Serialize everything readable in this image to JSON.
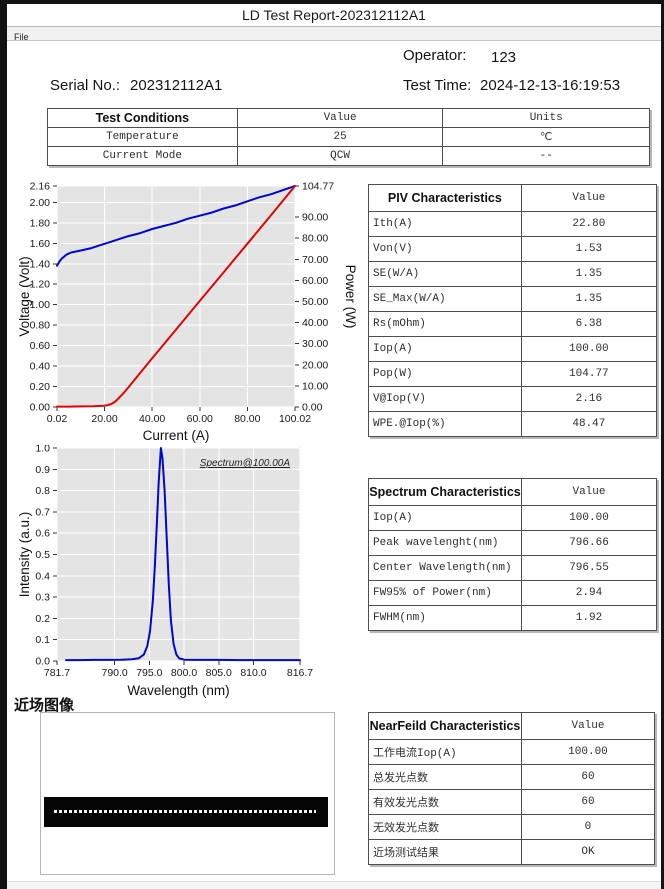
{
  "window": {
    "title": "LD Test Report-202312112A1",
    "menu": {
      "file_label": "File"
    }
  },
  "header": {
    "operator_label": "Operator:",
    "operator_value": "123",
    "serial_label": "Serial No.:",
    "serial_value": "202312112A1",
    "test_time_label": "Test Time:",
    "test_time_value": "2024-12-13-16:19:53"
  },
  "test_conditions": {
    "headers": [
      "Test Conditions",
      "Value",
      "Units"
    ],
    "rows": [
      [
        "Temperature",
        "25",
        "℃"
      ],
      [
        "Current Mode",
        "QCW",
        "--"
      ]
    ]
  },
  "piv_table": {
    "headers": [
      "PIV Characteristics",
      "Value"
    ],
    "rows": [
      [
        "Ith(A)",
        "22.80"
      ],
      [
        "Von(V)",
        "1.53"
      ],
      [
        "SE(W/A)",
        "1.35"
      ],
      [
        "SE_Max(W/A)",
        "1.35"
      ],
      [
        "Rs(mOhm)",
        "6.38"
      ],
      [
        "Iop(A)",
        "100.00"
      ],
      [
        "Pop(W)",
        "104.77"
      ],
      [
        "V@Iop(V)",
        "2.16"
      ],
      [
        "WPE.@Iop(%)",
        "48.47"
      ]
    ]
  },
  "spectrum_table": {
    "headers": [
      "Spectrum Characteristics",
      "Value"
    ],
    "rows": [
      [
        "Iop(A)",
        "100.00"
      ],
      [
        "Peak wavelenght(nm)",
        "796.66"
      ],
      [
        "Center Wavelength(nm)",
        "796.55"
      ],
      [
        "FW95% of Power(nm)",
        "2.94"
      ],
      [
        "FWHM(nm)",
        "1.92"
      ]
    ]
  },
  "nearfield": {
    "section_label": "近场图像",
    "table": {
      "headers": [
        "NearFeild Characteristics",
        "Value"
      ],
      "rows": [
        [
          "工作电流Iop(A)",
          "100.00"
        ],
        [
          "总发光点数",
          "60"
        ],
        [
          "有效发光点数",
          "60"
        ],
        [
          "无效发光点数",
          "0"
        ],
        [
          "近场测试结果",
          "OK"
        ]
      ]
    }
  },
  "colors": {
    "voltage_line": "#0007cf",
    "power_line": "#e00404",
    "spectrum_line": "#0007cf",
    "plot_bg": "#e4e4e4",
    "grid": "#ffffff"
  },
  "chart_data": [
    {
      "type": "line",
      "title": "",
      "xlabel": "Current (A)",
      "ylabel_left": "Voltage (Volt)",
      "ylabel_right": "Power (W)",
      "xlim": [
        0.02,
        100.02
      ],
      "x_tick_values": [
        0.02,
        20,
        40,
        60,
        80,
        100.02
      ],
      "x_tick_labels": [
        "0.02",
        "20.00",
        "40.00",
        "60.00",
        "80.00",
        "100.02"
      ],
      "ylim_left": [
        0,
        2.16
      ],
      "y_tick_values_left": [
        0,
        0.2,
        0.4,
        0.6,
        0.8,
        1.0,
        1.2,
        1.4,
        1.6,
        1.8,
        2.0,
        2.16
      ],
      "y_tick_labels_left": [
        "0.00",
        "0.20",
        "0.40",
        "0.60",
        "0.80",
        "1.00",
        "1.20",
        "1.40",
        "1.60",
        "1.80",
        "2.00",
        "2.16"
      ],
      "ylim_right": [
        0,
        104.77
      ],
      "y_tick_values_right": [
        0,
        10,
        20,
        30,
        40,
        50,
        60,
        70,
        80,
        90,
        104.77
      ],
      "y_tick_labels_right": [
        "0.00",
        "10.00",
        "20.00",
        "30.00",
        "40.00",
        "50.00",
        "60.00",
        "70.00",
        "80.00",
        "90.00",
        "104.77"
      ],
      "grid": true,
      "legend": "none",
      "series": [
        {
          "name": "Voltage",
          "axis": "left",
          "color": "#0007cf",
          "x": [
            0.02,
            1,
            2,
            3,
            4,
            6,
            8,
            10,
            14,
            18,
            22,
            26,
            30,
            35,
            40,
            45,
            50,
            55,
            60,
            65,
            70,
            75,
            80,
            85,
            90,
            95,
            100.02
          ],
          "y": [
            1.38,
            1.42,
            1.45,
            1.47,
            1.49,
            1.51,
            1.52,
            1.53,
            1.55,
            1.58,
            1.61,
            1.64,
            1.67,
            1.7,
            1.74,
            1.77,
            1.8,
            1.84,
            1.87,
            1.9,
            1.94,
            1.97,
            2.01,
            2.05,
            2.08,
            2.12,
            2.16
          ]
        },
        {
          "name": "Power",
          "axis": "right",
          "color": "#e00404",
          "x": [
            0.02,
            5,
            10,
            15,
            20,
            21.5,
            23,
            24.5,
            26,
            28,
            30,
            35,
            40,
            50,
            60,
            70,
            80,
            90,
            100.02
          ],
          "y": [
            0.2,
            0.2,
            0.3,
            0.4,
            0.6,
            0.9,
            1.5,
            2.6,
            4.2,
            6.6,
            9.3,
            16.2,
            23.1,
            36.7,
            50.3,
            63.8,
            77.4,
            91.0,
            104.77
          ]
        }
      ]
    },
    {
      "type": "line",
      "title": "",
      "annotation": "Spectrum@100.00A",
      "xlabel": "Wavelength (nm)",
      "ylabel_left": "Intensity (a.u.)",
      "xlim": [
        781.7,
        816.7
      ],
      "x_tick_values": [
        781.7,
        790,
        795,
        800,
        805,
        810,
        816.7
      ],
      "x_tick_labels": [
        "781.7",
        "790.0",
        "795.0",
        "800.0",
        "805.0",
        "810.0",
        "816.7"
      ],
      "ylim_left": [
        0,
        1
      ],
      "y_tick_values_left": [
        0,
        0.1,
        0.2,
        0.3,
        0.4,
        0.5,
        0.6,
        0.7,
        0.8,
        0.9,
        1.0
      ],
      "y_tick_labels_left": [
        "0.0",
        "0.1",
        "0.2",
        "0.3",
        "0.4",
        "0.5",
        "0.6",
        "0.7",
        "0.8",
        "0.9",
        "1.0"
      ],
      "grid": true,
      "legend": "none",
      "series": [
        {
          "name": "Spectrum",
          "axis": "left",
          "color": "#0007cf",
          "x": [
            783,
            785,
            787,
            789,
            791,
            792.5,
            793.5,
            794.2,
            794.7,
            795.1,
            795.5,
            795.8,
            796.1,
            796.35,
            796.66,
            796.9,
            797.2,
            797.5,
            797.8,
            798.1,
            798.5,
            798.9,
            799.3,
            800,
            801.5,
            803,
            805,
            808,
            812,
            816.7
          ],
          "y": [
            0.004,
            0.004,
            0.005,
            0.005,
            0.006,
            0.008,
            0.013,
            0.03,
            0.07,
            0.14,
            0.28,
            0.45,
            0.66,
            0.84,
            1.0,
            0.95,
            0.8,
            0.58,
            0.36,
            0.19,
            0.08,
            0.03,
            0.012,
            0.006,
            0.005,
            0.005,
            0.005,
            0.004,
            0.004,
            0.004
          ]
        }
      ]
    }
  ]
}
